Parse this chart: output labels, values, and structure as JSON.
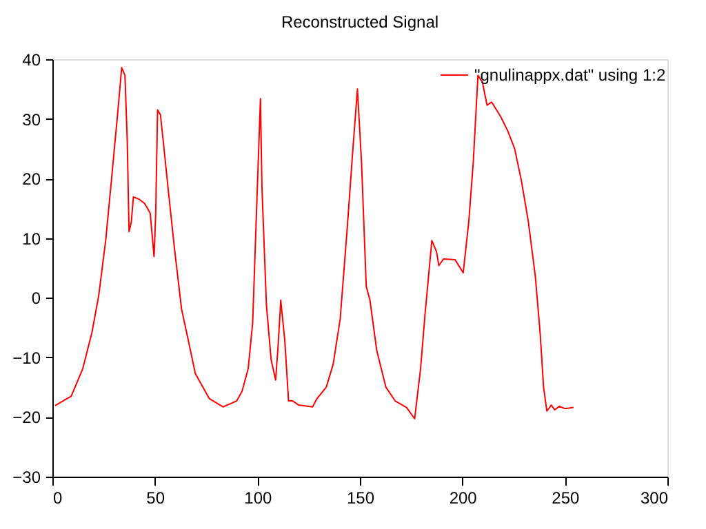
{
  "chart_data": {
    "type": "line",
    "title": "Reconstructed Signal",
    "legend": "top right",
    "grid": false,
    "marker": "none",
    "line_style": "solid",
    "xlim": [
      0,
      300
    ],
    "xticks": [
      0,
      50,
      100,
      150,
      200,
      250,
      300
    ],
    "ylim": [
      -30,
      40
    ],
    "yticks": [
      -30,
      -20,
      -10,
      0,
      10,
      20,
      30,
      40
    ],
    "series": [
      {
        "name": "\"gnulinappx.dat\" using 1:2",
        "color": "#ff0000",
        "x": [
          1.3,
          9.2,
          14.8,
          19.3,
          22.6,
          26,
          29.4,
          32.1,
          33.8,
          35.4,
          36.5,
          37.4,
          38.5,
          39.5,
          42.4,
          45,
          47.7,
          49.6,
          50.4,
          51.3,
          52.7,
          54,
          56.3,
          59.6,
          63,
          66.4,
          69.7,
          76.5,
          83.2,
          89.9,
          92.5,
          95.5,
          97.7,
          100,
          101.5,
          102.2,
          104.4,
          106.7,
          108.9,
          110.1,
          111.4,
          113.4,
          115.2,
          117.2,
          120.2,
          126.9,
          129.1,
          133.6,
          137,
          140.4,
          143.7,
          146.6,
          148.8,
          150.8,
          153.1,
          154.9,
          158.2,
          162.7,
          167.2,
          172.8,
          176.7,
          179.6,
          181.8,
          185.1,
          187.4,
          188.5,
          190.8,
          196.4,
          200.4,
          203.1,
          205.3,
          207.6,
          209.8,
          212,
          214.3,
          218.8,
          222.1,
          225.5,
          228.8,
          232.2,
          235.6,
          237.9,
          239.6,
          241.2,
          243.4,
          245,
          247.3,
          250.2,
          254.2
        ],
        "values": [
          -18.1,
          -16.5,
          -11.9,
          -5.8,
          0.4,
          9.6,
          21.9,
          31.9,
          38.6,
          37.3,
          26.5,
          11.1,
          12.7,
          16.9,
          16.5,
          15.8,
          14.2,
          6.9,
          14.2,
          31.5,
          30.7,
          26.5,
          18.8,
          8.1,
          -1.9,
          -7.3,
          -12.7,
          -16.9,
          -18.3,
          -17.3,
          -15.7,
          -11.9,
          -4.2,
          18.8,
          33.4,
          18.8,
          -1.2,
          -10.4,
          -13.8,
          -8.1,
          -0.4,
          -7.3,
          -17.3,
          -17.3,
          -18,
          -18.3,
          -16.9,
          -15,
          -11.1,
          -3.5,
          11.1,
          25,
          35,
          22.7,
          1.9,
          -0.4,
          -8.8,
          -15,
          -17.3,
          -18.4,
          -20.3,
          -11.9,
          -2.7,
          9.6,
          7.7,
          5.4,
          6.5,
          6.4,
          4.2,
          12.7,
          22.7,
          37.3,
          36.1,
          32.3,
          32.8,
          30.3,
          28,
          25,
          19.6,
          12.7,
          3.5,
          -5.8,
          -15,
          -19,
          -18,
          -18.8,
          -18.2,
          -18.6,
          -18.4
        ]
      }
    ]
  }
}
